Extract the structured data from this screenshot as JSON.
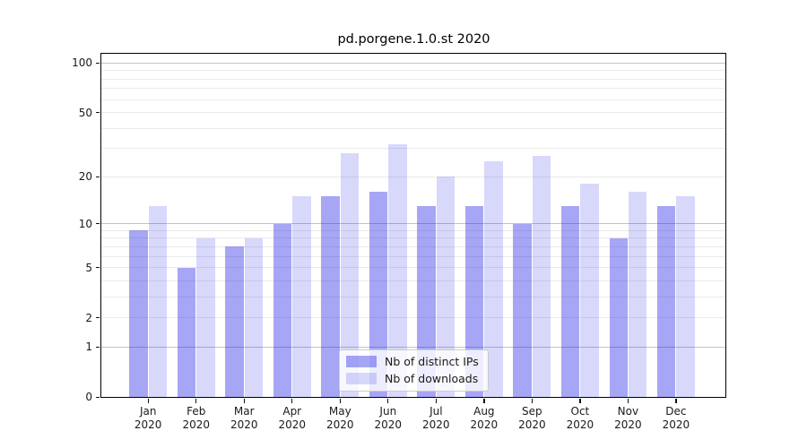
{
  "chart_data": {
    "type": "bar",
    "title": "pd.porgene.1.0.st 2020",
    "months": [
      "Jan",
      "Feb",
      "Mar",
      "Apr",
      "May",
      "Jun",
      "Jul",
      "Aug",
      "Sep",
      "Oct",
      "Nov",
      "Dec"
    ],
    "year": "2020",
    "series": [
      {
        "name": "Nb of distinct IPs",
        "values": [
          9,
          5,
          7,
          10,
          15,
          16,
          13,
          13,
          10,
          13,
          8,
          13
        ],
        "color": "rgba(20,20,230,0.38)"
      },
      {
        "name": "Nb of downloads",
        "values": [
          13,
          8,
          8,
          15,
          28,
          32,
          20,
          25,
          27,
          18,
          16,
          15
        ],
        "color": "rgba(20,20,230,0.165)"
      }
    ],
    "xlabel": "",
    "ylabel": "",
    "y_ticks": [
      0,
      1,
      2,
      5,
      10,
      20,
      50,
      100
    ],
    "y_major_gridlines": [
      1,
      10,
      100
    ],
    "y_minor_gridlines": [
      2,
      3,
      4,
      5,
      6,
      7,
      8,
      9,
      20,
      30,
      40,
      50,
      60,
      70,
      80,
      90
    ],
    "y_scale": "log1p",
    "ylim": [
      0,
      114
    ],
    "grid": true,
    "legend_position": "lower center"
  },
  "colors": {
    "bar_dark": "#a8a8f8",
    "bar_light": "#d8d8f8",
    "major_grid": "#c3c3c3",
    "minor_grid": "#eaeaea",
    "spine": "#000000",
    "text": "#1a1a1a"
  }
}
